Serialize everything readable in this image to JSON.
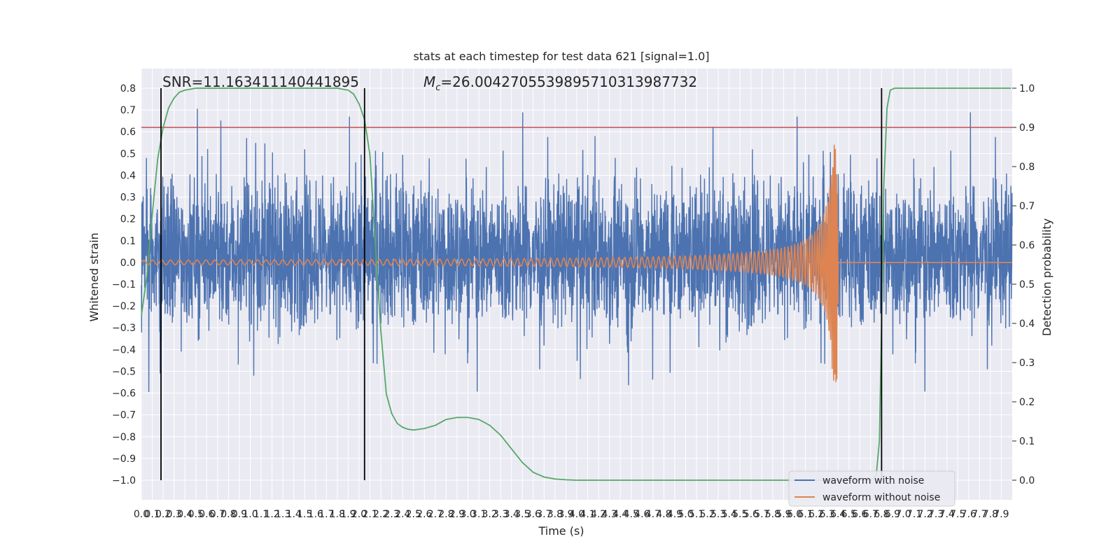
{
  "chart_data": {
    "type": "line",
    "title": "stats at each timestep for test data 621 [signal=1.0]",
    "xlabel": "Time (s)",
    "ylabel": "Whitened strain",
    "y2label": "Detection probability",
    "xlim": [
      0.0,
      8.0
    ],
    "ylim": [
      -1.09,
      0.89
    ],
    "y2lim": [
      -0.05,
      1.05
    ],
    "x_ticks": [
      "0.0",
      "0.1",
      "0.2",
      "0.3",
      "0.4",
      "0.5",
      "0.6",
      "0.7",
      "0.8",
      "0.9",
      "1.0",
      "1.1",
      "1.2",
      "1.3",
      "1.4",
      "1.5",
      "1.6",
      "1.7",
      "1.8",
      "1.9",
      "2.0",
      "2.1",
      "2.2",
      "2.3",
      "2.4",
      "2.5",
      "2.6",
      "2.7",
      "2.8",
      "2.9",
      "3.0",
      "3.1",
      "3.2",
      "3.3",
      "3.4",
      "3.5",
      "3.6",
      "3.7",
      "3.8",
      "3.9",
      "4.0",
      "4.1",
      "4.2",
      "4.3",
      "4.4",
      "4.5",
      "4.6",
      "4.7",
      "4.8",
      "4.9",
      "5.0",
      "5.1",
      "5.2",
      "5.3",
      "5.4",
      "5.5",
      "5.6",
      "5.7",
      "5.8",
      "5.9",
      "6.0",
      "6.1",
      "6.2",
      "6.3",
      "6.4",
      "6.5",
      "6.6",
      "6.7",
      "6.8",
      "6.9",
      "7.0",
      "7.1",
      "7.2",
      "7.3",
      "7.4",
      "7.5",
      "7.6",
      "7.7",
      "7.8",
      "7.9"
    ],
    "y_ticks": [
      "0.8",
      "0.7",
      "0.6",
      "0.5",
      "0.4",
      "0.3",
      "0.2",
      "0.1",
      "0.0",
      "−0.1",
      "−0.2",
      "−0.3",
      "−0.4",
      "−0.5",
      "−0.6",
      "−0.7",
      "−0.8",
      "−0.9",
      "−1.0"
    ],
    "y_tick_values": [
      0.8,
      0.7,
      0.6,
      0.5,
      0.4,
      0.3,
      0.2,
      0.1,
      0.0,
      -0.1,
      -0.2,
      -0.3,
      -0.4,
      -0.5,
      -0.6,
      -0.7,
      -0.8,
      -0.9,
      -1.0
    ],
    "y2_ticks": [
      "1.0",
      "0.9",
      "0.8",
      "0.7",
      "0.6",
      "0.5",
      "0.4",
      "0.3",
      "0.2",
      "0.1",
      "0.0"
    ],
    "y2_tick_values": [
      1.0,
      0.9,
      0.8,
      0.7,
      0.6,
      0.5,
      0.4,
      0.3,
      0.2,
      0.1,
      0.0
    ],
    "grid": true,
    "legend_position": "bottom-right",
    "series": [
      {
        "name": "waveform with noise",
        "color": "#4c72b0",
        "kind": "noise",
        "envelope": {
          "typical_max": 0.45,
          "typical_min": -0.35,
          "peak_max": 0.8,
          "peak_min": -1.0
        }
      },
      {
        "name": "waveform without noise",
        "color": "#dd8452",
        "kind": "chirp",
        "start": 0.0,
        "merger": 6.4,
        "peak_amplitude": 0.55,
        "trough_amplitude": -0.52
      },
      {
        "name": "detection probability",
        "color": "#55a868",
        "axis": "right",
        "x": [
          0.0,
          0.05,
          0.1,
          0.15,
          0.2,
          0.25,
          0.3,
          0.35,
          0.4,
          0.5,
          0.6,
          0.8,
          1.0,
          1.5,
          1.8,
          1.9,
          1.95,
          2.0,
          2.05,
          2.1,
          2.15,
          2.2,
          2.25,
          2.3,
          2.35,
          2.4,
          2.45,
          2.5,
          2.6,
          2.7,
          2.8,
          2.9,
          3.0,
          3.1,
          3.2,
          3.3,
          3.4,
          3.5,
          3.6,
          3.7,
          3.8,
          3.9,
          4.0,
          5.0,
          6.0,
          6.7,
          6.75,
          6.78,
          6.8,
          6.82,
          6.85,
          6.88,
          6.92,
          7.0,
          7.5,
          7.99
        ],
        "y": [
          0.42,
          0.52,
          0.68,
          0.82,
          0.9,
          0.95,
          0.975,
          0.99,
          0.995,
          1.0,
          1.0,
          1.0,
          1.0,
          1.0,
          1.0,
          0.995,
          0.985,
          0.96,
          0.92,
          0.83,
          0.6,
          0.38,
          0.22,
          0.17,
          0.145,
          0.135,
          0.13,
          0.128,
          0.132,
          0.14,
          0.155,
          0.16,
          0.16,
          0.155,
          0.14,
          0.115,
          0.08,
          0.045,
          0.02,
          0.008,
          0.003,
          0.001,
          0.0,
          0.0,
          0.0,
          0.0,
          0.01,
          0.1,
          0.4,
          0.75,
          0.95,
          0.995,
          1.0,
          1.0,
          1.0,
          1.0
        ]
      }
    ],
    "hlines": [
      {
        "axis": "right",
        "value": 0.9,
        "color": "#c44e52"
      }
    ],
    "vlines": [
      {
        "x": 0.18,
        "color": "#000000"
      },
      {
        "x": 2.05,
        "color": "#000000"
      },
      {
        "x": 6.8,
        "color": "#000000"
      }
    ],
    "annotations": [
      {
        "text": "SNR=11.163411140441895",
        "x": 0.19
      },
      {
        "text": "Mc=26.0042705539895710313987732",
        "x": 2.6
      }
    ]
  }
}
